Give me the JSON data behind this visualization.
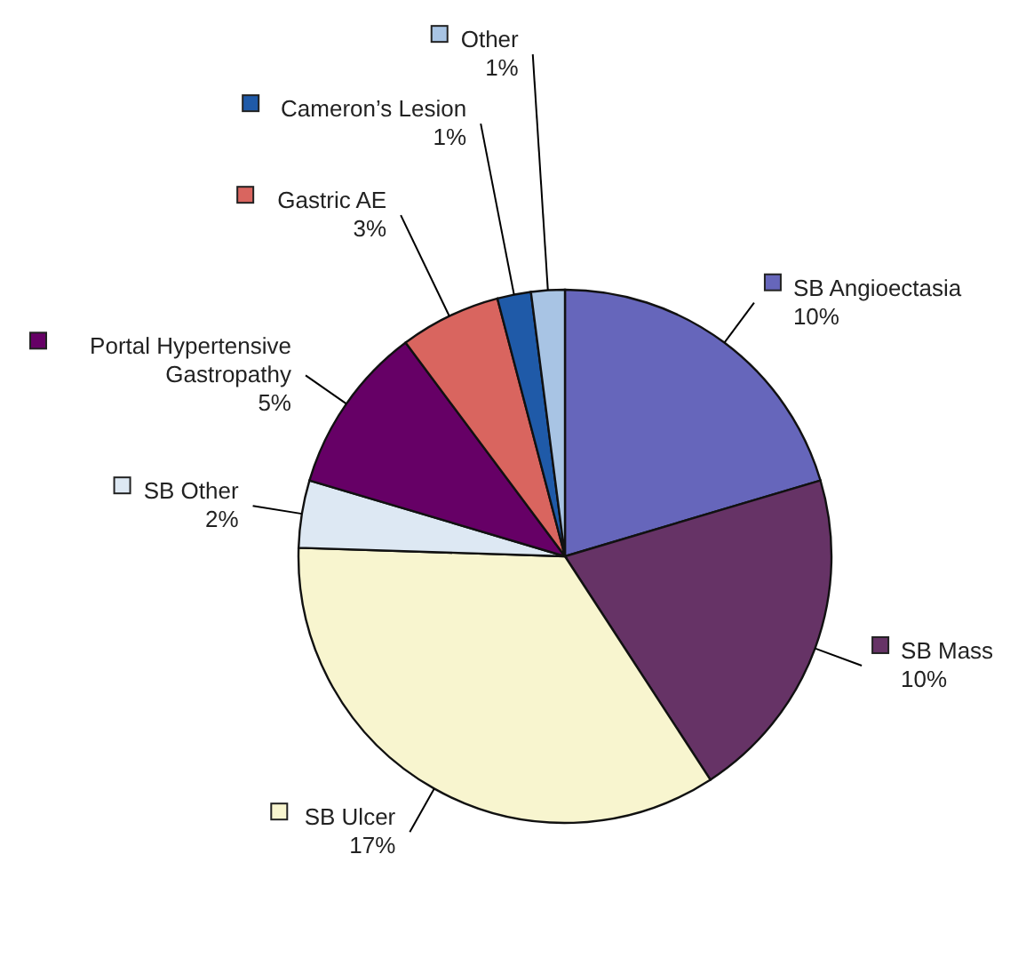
{
  "chart_data": {
    "type": "pie",
    "categories": [
      "SB Angioectasia",
      "SB Mass",
      "SB Ulcer",
      "SB Other",
      "Portal Hypertensive Gastropathy",
      "Gastric AE",
      "Cameron’s Lesion",
      "Other"
    ],
    "values": [
      10,
      10,
      17,
      2,
      5,
      3,
      1,
      1
    ],
    "value_labels": [
      "10%",
      "10%",
      "17%",
      "2%",
      "5%",
      "3%",
      "1%",
      "1%"
    ],
    "colors": [
      "#6666bb",
      "#663366",
      "#f8f5cf",
      "#dde8f3",
      "#660066",
      "#d9655f",
      "#1f5aa8",
      "#a8c4e4"
    ],
    "legend": "left"
  }
}
